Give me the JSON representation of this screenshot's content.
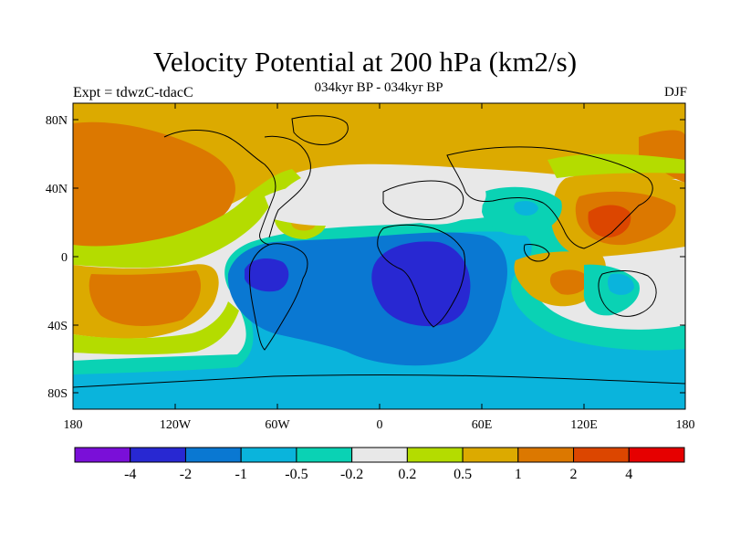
{
  "figure": {
    "title": "Velocity Potential at 200 hPa (km2/s)",
    "subtitle": "034kyr BP - 034kyr BP",
    "left_label": "Expt = tdwzC-tdacC",
    "right_label": "DJF"
  },
  "map": {
    "projection": "cylindrical-equidistant",
    "lon_range": [
      -180,
      180
    ],
    "lat_range": [
      -90,
      90
    ],
    "lat_ticks": [
      "80N",
      "40N",
      "0",
      "40S",
      "80S"
    ],
    "lon_ticks": [
      "180",
      "120W",
      "60W",
      "0",
      "60E",
      "120E",
      "180"
    ],
    "coastlines": true
  },
  "colorbar": {
    "colors": [
      "#7a0fd8",
      "#2828d2",
      "#0a78d2",
      "#0ab4dc",
      "#0ad2b4",
      "#e8e8e8",
      "#b4dc00",
      "#dcaa00",
      "#dc7800",
      "#dc4600",
      "#e60000"
    ],
    "labels": [
      "-4",
      "-2",
      "-1",
      "-0.5",
      "-0.2",
      "0.2",
      "0.5",
      "1",
      "2",
      "4"
    ]
  },
  "field_regions": [
    {
      "name": "north-pacific-positive",
      "level": "1 to 2"
    },
    {
      "name": "west-pacific-maximum",
      "level": "2 to 4"
    },
    {
      "name": "africa-minimum",
      "level": "-4 to -2"
    },
    {
      "name": "south-america-minimum",
      "level": "-4 to -2"
    },
    {
      "name": "southern-ocean-negative",
      "level": "-1 to -0.5"
    }
  ]
}
